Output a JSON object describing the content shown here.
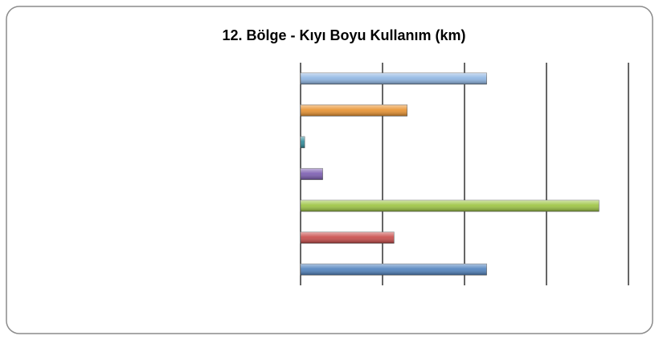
{
  "chart_data": {
    "type": "hbar",
    "title": "12. Bölge - Kıyı Boyu Kullanım (km)",
    "categories": [
      null,
      null,
      null,
      null,
      null,
      null,
      null
    ],
    "values": [
      2.27,
      1.3,
      0.05,
      0.27,
      3.64,
      1.14,
      2.27
    ],
    "colors": [
      "#8db4e2",
      "#e8912e",
      "#2c8a9a",
      "#7a5bb0",
      "#9bc33f",
      "#c84a48",
      "#4f81bd"
    ],
    "xlim": [
      0,
      4
    ],
    "xticks": [
      0,
      1,
      2,
      3,
      4
    ],
    "grid": true
  }
}
